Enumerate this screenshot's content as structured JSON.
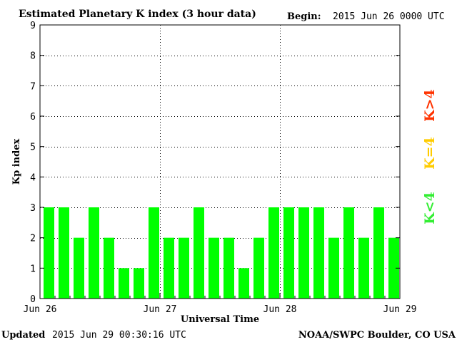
{
  "header": {
    "begin_label": "Begin:",
    "begin_value": "2015 Jun 26 0000 UTC"
  },
  "footer": {
    "updated_label": "Updated",
    "updated_value": "2015 Jun 29 00:30:16 UTC",
    "source": "NOAA/SWPC Boulder, CO USA"
  },
  "legend": [
    {
      "label": "K>4",
      "color": "#ff3300"
    },
    {
      "label": "K=4",
      "color": "#ffcc00"
    },
    {
      "label": "K<4",
      "color": "#33ee33"
    }
  ],
  "chart_data": {
    "type": "bar",
    "title": "Estimated Planetary K index (3 hour data)",
    "xlabel": "Universal Time",
    "ylabel": "Kp index",
    "ylim": [
      0,
      9
    ],
    "yticks": [
      0,
      1,
      2,
      3,
      4,
      5,
      6,
      7,
      8,
      9
    ],
    "x_tick_labels": [
      "Jun 26",
      "Jun 27",
      "Jun 28",
      "Jun 29"
    ],
    "grid": true,
    "bar_color": "#00ff00",
    "values": [
      3,
      3,
      2,
      3,
      2,
      1,
      1,
      3,
      2,
      2,
      3,
      2,
      2,
      1,
      2,
      3,
      3,
      3,
      3,
      2,
      3,
      2,
      3,
      2
    ]
  }
}
